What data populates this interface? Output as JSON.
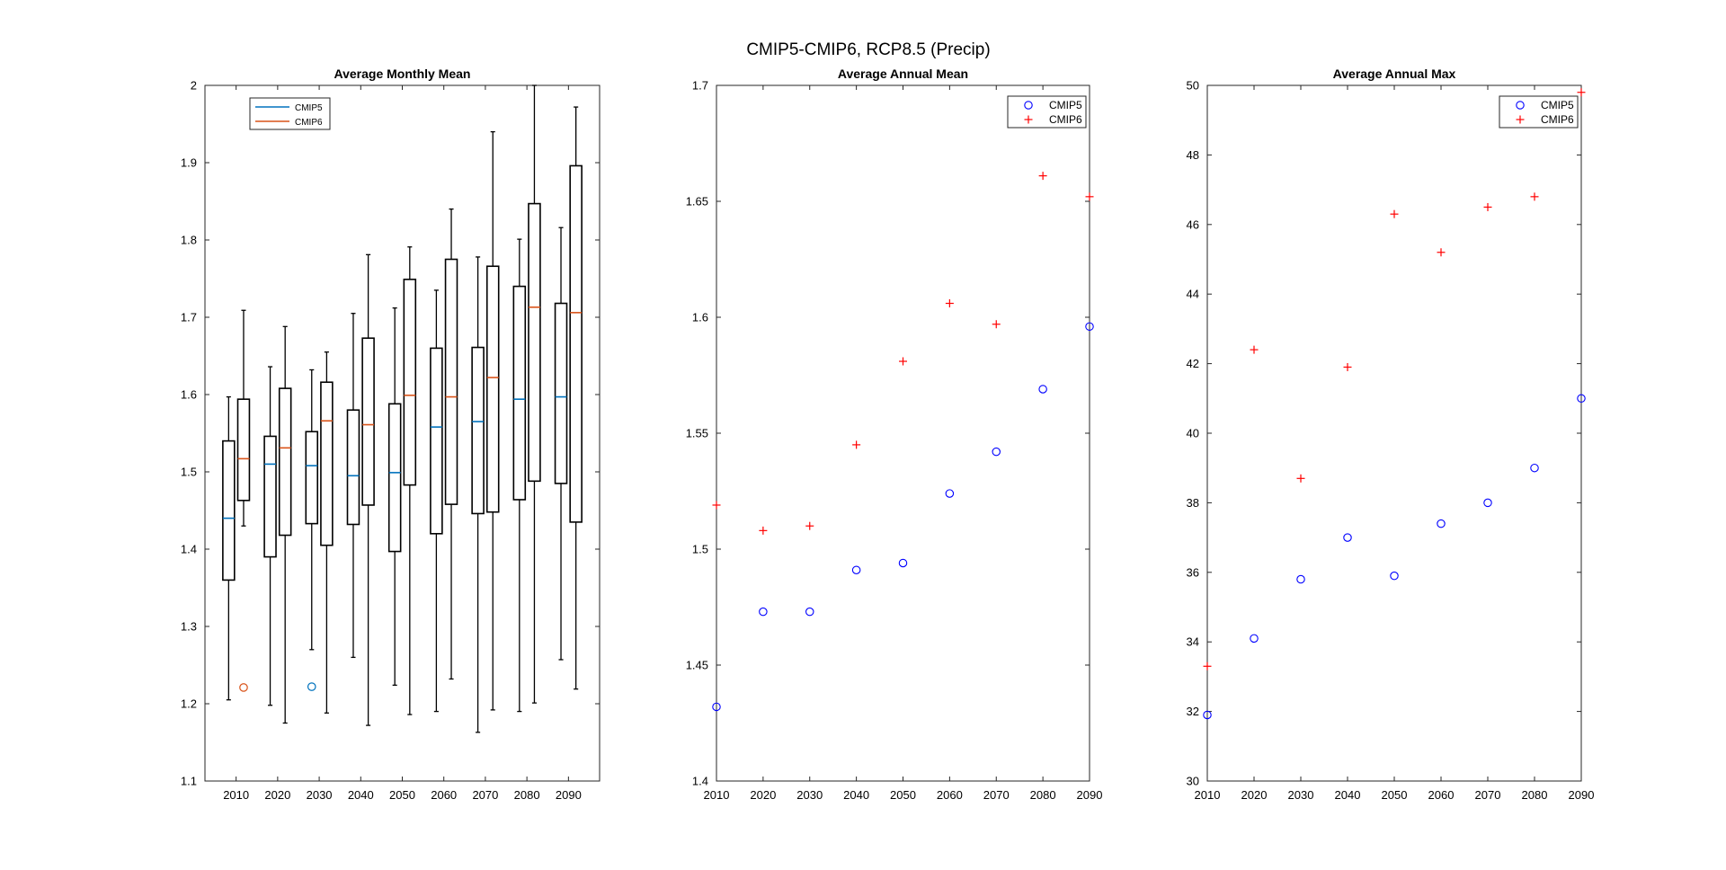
{
  "figure": {
    "title": "CMIP5-CMIP6, RCP8.5 (Precip)"
  },
  "colors": {
    "cmip5_box": "#0072BD",
    "cmip6_box": "#D95319",
    "cmip5_marker": "#0000FF",
    "cmip6_marker": "#FF0000",
    "axis": "#262626"
  },
  "chart_data": [
    {
      "type": "box",
      "title": "Average Monthly Mean",
      "categories": [
        "2010",
        "2020",
        "2030",
        "2040",
        "2050",
        "2060",
        "2070",
        "2080",
        "2090"
      ],
      "ylim": [
        1.1,
        2
      ],
      "yticks": [
        1.1,
        1.2,
        1.3,
        1.4,
        1.5,
        1.6,
        1.7,
        1.8,
        1.9,
        2
      ],
      "ytick_labels": [
        "1.1",
        "1.2",
        "1.3",
        "1.4",
        "1.5",
        "1.6",
        "1.7",
        "1.8",
        "1.9",
        "2"
      ],
      "legend": {
        "location": "top-left",
        "entries": [
          "CMIP5",
          "CMIP6"
        ]
      },
      "series": [
        {
          "name": "CMIP5",
          "boxes": [
            {
              "whisker_low": 1.205,
              "q1": 1.36,
              "median": 1.44,
              "q3": 1.54,
              "whisker_high": 1.597,
              "outliers": []
            },
            {
              "whisker_low": 1.198,
              "q1": 1.39,
              "median": 1.51,
              "q3": 1.546,
              "whisker_high": 1.636,
              "outliers": []
            },
            {
              "whisker_low": 1.27,
              "q1": 1.433,
              "median": 1.508,
              "q3": 1.552,
              "whisker_high": 1.632,
              "outliers": [
                1.222
              ]
            },
            {
              "whisker_low": 1.26,
              "q1": 1.432,
              "median": 1.495,
              "q3": 1.58,
              "whisker_high": 1.705,
              "outliers": []
            },
            {
              "whisker_low": 1.224,
              "q1": 1.397,
              "median": 1.499,
              "q3": 1.588,
              "whisker_high": 1.712,
              "outliers": []
            },
            {
              "whisker_low": 1.19,
              "q1": 1.42,
              "median": 1.558,
              "q3": 1.66,
              "whisker_high": 1.735,
              "outliers": []
            },
            {
              "whisker_low": 1.163,
              "q1": 1.446,
              "median": 1.565,
              "q3": 1.661,
              "whisker_high": 1.778,
              "outliers": []
            },
            {
              "whisker_low": 1.19,
              "q1": 1.464,
              "median": 1.594,
              "q3": 1.74,
              "whisker_high": 1.801,
              "outliers": []
            },
            {
              "whisker_low": 1.257,
              "q1": 1.485,
              "median": 1.597,
              "q3": 1.718,
              "whisker_high": 1.816,
              "outliers": []
            }
          ]
        },
        {
          "name": "CMIP6",
          "boxes": [
            {
              "whisker_low": 1.43,
              "q1": 1.463,
              "median": 1.517,
              "q3": 1.594,
              "whisker_high": 1.709,
              "outliers": [
                1.221
              ]
            },
            {
              "whisker_low": 1.175,
              "q1": 1.418,
              "median": 1.531,
              "q3": 1.608,
              "whisker_high": 1.688,
              "outliers": []
            },
            {
              "whisker_low": 1.188,
              "q1": 1.405,
              "median": 1.566,
              "q3": 1.616,
              "whisker_high": 1.655,
              "outliers": []
            },
            {
              "whisker_low": 1.172,
              "q1": 1.457,
              "median": 1.561,
              "q3": 1.673,
              "whisker_high": 1.781,
              "outliers": []
            },
            {
              "whisker_low": 1.186,
              "q1": 1.483,
              "median": 1.599,
              "q3": 1.749,
              "whisker_high": 1.791,
              "outliers": []
            },
            {
              "whisker_low": 1.232,
              "q1": 1.458,
              "median": 1.597,
              "q3": 1.775,
              "whisker_high": 1.84,
              "outliers": []
            },
            {
              "whisker_low": 1.192,
              "q1": 1.448,
              "median": 1.622,
              "q3": 1.766,
              "whisker_high": 1.94,
              "outliers": []
            },
            {
              "whisker_low": 1.201,
              "q1": 1.488,
              "median": 1.713,
              "q3": 1.847,
              "whisker_high": 2.0,
              "outliers": []
            },
            {
              "whisker_low": 1.219,
              "q1": 1.435,
              "median": 1.706,
              "q3": 1.896,
              "whisker_high": 1.972,
              "outliers": []
            }
          ]
        }
      ]
    },
    {
      "type": "scatter",
      "title": "Average Annual Mean",
      "xlim": [
        2010,
        2090
      ],
      "xticks": [
        2010,
        2020,
        2030,
        2040,
        2050,
        2060,
        2070,
        2080,
        2090
      ],
      "xtick_labels": [
        "2010",
        "2020",
        "2030",
        "2040",
        "2050",
        "2060",
        "2070",
        "2080",
        "2090"
      ],
      "ylim": [
        1.4,
        1.7
      ],
      "yticks": [
        1.4,
        1.45,
        1.5,
        1.55,
        1.6,
        1.65,
        1.7
      ],
      "ytick_labels": [
        "1.4",
        "1.45",
        "1.5",
        "1.55",
        "1.6",
        "1.65",
        "1.7"
      ],
      "legend": {
        "location": "top-right",
        "entries": [
          "CMIP5",
          "CMIP6"
        ]
      },
      "series": [
        {
          "name": "CMIP5",
          "marker": "circle",
          "x": [
            2010,
            2020,
            2030,
            2040,
            2050,
            2060,
            2070,
            2080,
            2090
          ],
          "y": [
            1.432,
            1.473,
            1.473,
            1.491,
            1.494,
            1.524,
            1.542,
            1.569,
            1.596
          ]
        },
        {
          "name": "CMIP6",
          "marker": "plus",
          "x": [
            2010,
            2020,
            2030,
            2040,
            2050,
            2060,
            2070,
            2080,
            2090
          ],
          "y": [
            1.519,
            1.508,
            1.51,
            1.545,
            1.581,
            1.606,
            1.597,
            1.661,
            1.652
          ]
        }
      ]
    },
    {
      "type": "scatter",
      "title": "Average Annual Max",
      "xlim": [
        2010,
        2090
      ],
      "xticks": [
        2010,
        2020,
        2030,
        2040,
        2050,
        2060,
        2070,
        2080,
        2090
      ],
      "xtick_labels": [
        "2010",
        "2020",
        "2030",
        "2040",
        "2050",
        "2060",
        "2070",
        "2080",
        "2090"
      ],
      "ylim": [
        30,
        50
      ],
      "yticks": [
        30,
        32,
        34,
        36,
        38,
        40,
        42,
        44,
        46,
        48,
        50
      ],
      "ytick_labels": [
        "30",
        "32",
        "34",
        "36",
        "38",
        "40",
        "42",
        "44",
        "46",
        "48",
        "50"
      ],
      "legend": {
        "location": "top-right",
        "entries": [
          "CMIP5",
          "CMIP6"
        ]
      },
      "series": [
        {
          "name": "CMIP5",
          "marker": "circle",
          "x": [
            2010,
            2020,
            2030,
            2040,
            2050,
            2060,
            2070,
            2080,
            2090
          ],
          "y": [
            31.9,
            34.1,
            35.8,
            37.0,
            35.9,
            37.4,
            38.0,
            39.0,
            41.0
          ]
        },
        {
          "name": "CMIP6",
          "marker": "plus",
          "x": [
            2010,
            2020,
            2030,
            2040,
            2050,
            2060,
            2070,
            2080,
            2090
          ],
          "y": [
            33.3,
            42.4,
            38.7,
            41.9,
            46.3,
            45.2,
            46.5,
            46.8,
            49.8
          ]
        }
      ]
    }
  ]
}
